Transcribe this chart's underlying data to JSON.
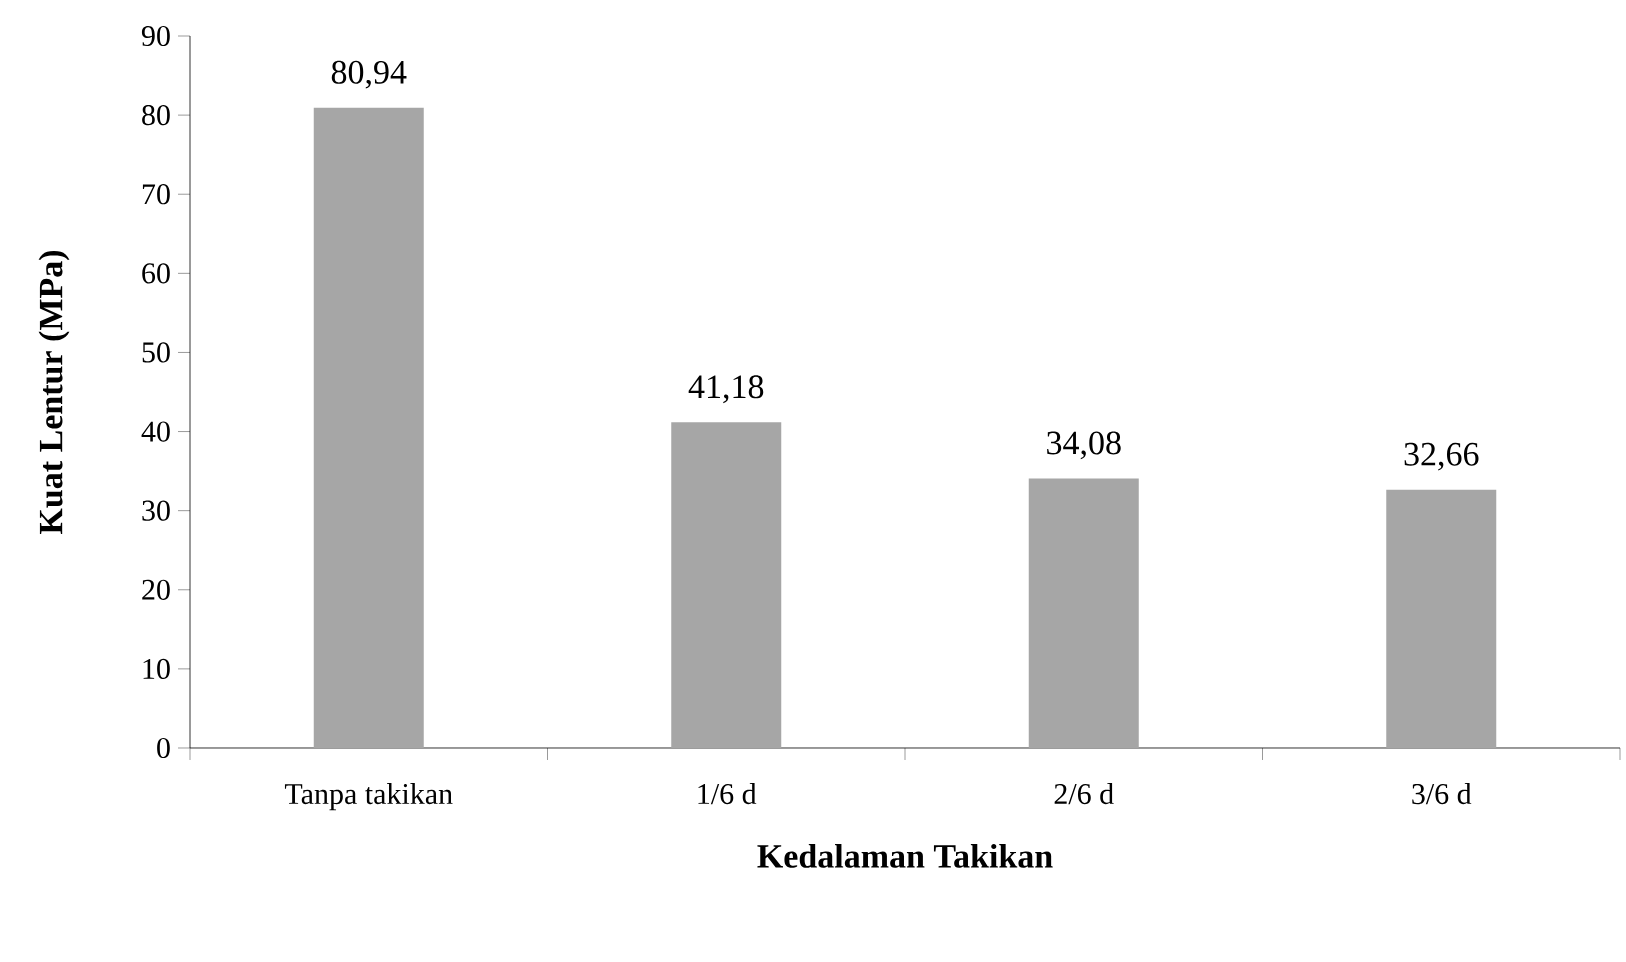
{
  "chart_data": {
    "type": "bar",
    "xlabel": "Kedalaman Takikan",
    "ylabel": "Kuat Lentur (MPa)",
    "categories": [
      "Tanpa takikan",
      "1/6 d",
      "2/6 d",
      "3/6 d"
    ],
    "values": [
      80.94,
      41.18,
      34.08,
      32.66
    ],
    "value_labels": [
      "80,94",
      "41,18",
      "34,08",
      "32,66"
    ],
    "color": "#a6a6a6",
    "ylim": [
      0,
      90
    ],
    "yticks": [
      0,
      10,
      20,
      30,
      40,
      50,
      60,
      70,
      80,
      90
    ],
    "grid": false
  }
}
